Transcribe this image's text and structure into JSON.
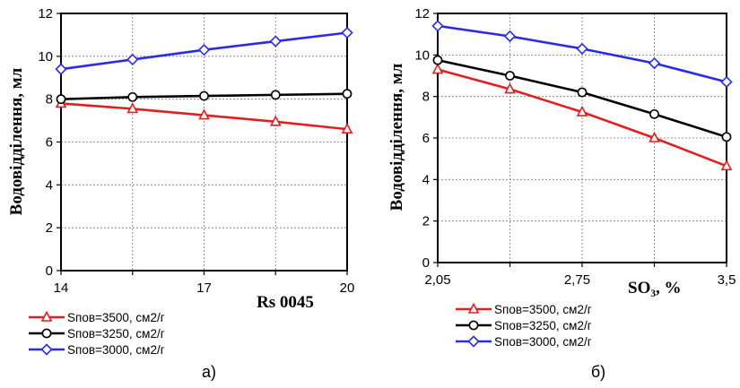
{
  "chart_data": [
    {
      "type": "line",
      "caption": "а)",
      "xlabel": "Rs 0045",
      "ylabel": "Водовідділення, мл",
      "xlim": [
        14,
        20
      ],
      "ylim": [
        0,
        12
      ],
      "x_ticks": [
        "14",
        "17",
        "20"
      ],
      "y_ticks": [
        "0",
        "2",
        "4",
        "6",
        "8",
        "10",
        "12"
      ],
      "grid": true,
      "legend_position": "bottom-left",
      "x": [
        14,
        15.5,
        17,
        18.5,
        20
      ],
      "series": [
        {
          "name": "Sпов=3500, см2/г",
          "color": "#e02020",
          "marker": "triangle",
          "values": [
            7.8,
            7.55,
            7.25,
            6.95,
            6.6
          ]
        },
        {
          "name": "Sпов=3250, см2/г",
          "color": "#000000",
          "marker": "circle",
          "values": [
            8.0,
            8.1,
            8.15,
            8.2,
            8.25
          ]
        },
        {
          "name": "Sпов=3000, см2/г",
          "color": "#2a2ae8",
          "marker": "diamond",
          "values": [
            9.4,
            9.85,
            10.3,
            10.7,
            11.1
          ]
        }
      ]
    },
    {
      "type": "line",
      "caption": "б)",
      "xlabel": "SO₃, %",
      "ylabel": "Водовідділення, мл",
      "xlim": [
        2.05,
        3.5
      ],
      "ylim": [
        0,
        12
      ],
      "x_ticks": [
        "2,05",
        "2,75",
        "3,5"
      ],
      "y_ticks": [
        "0",
        "2",
        "4",
        "6",
        "8",
        "10",
        "12"
      ],
      "grid": true,
      "legend_position": "bottom-left",
      "x": [
        2.05,
        2.4125,
        2.775,
        3.1375,
        3.5
      ],
      "series": [
        {
          "name": "Sпов=3500, см2/г",
          "color": "#e02020",
          "marker": "triangle",
          "values": [
            9.3,
            8.35,
            7.25,
            6.0,
            4.65
          ]
        },
        {
          "name": "Sпов=3250, см2/г",
          "color": "#000000",
          "marker": "circle",
          "values": [
            9.75,
            9.0,
            8.2,
            7.15,
            6.05
          ]
        },
        {
          "name": "Sпов=3000, см2/г",
          "color": "#2a2ae8",
          "marker": "diamond",
          "values": [
            11.4,
            10.9,
            10.3,
            9.6,
            8.7
          ]
        }
      ]
    }
  ]
}
